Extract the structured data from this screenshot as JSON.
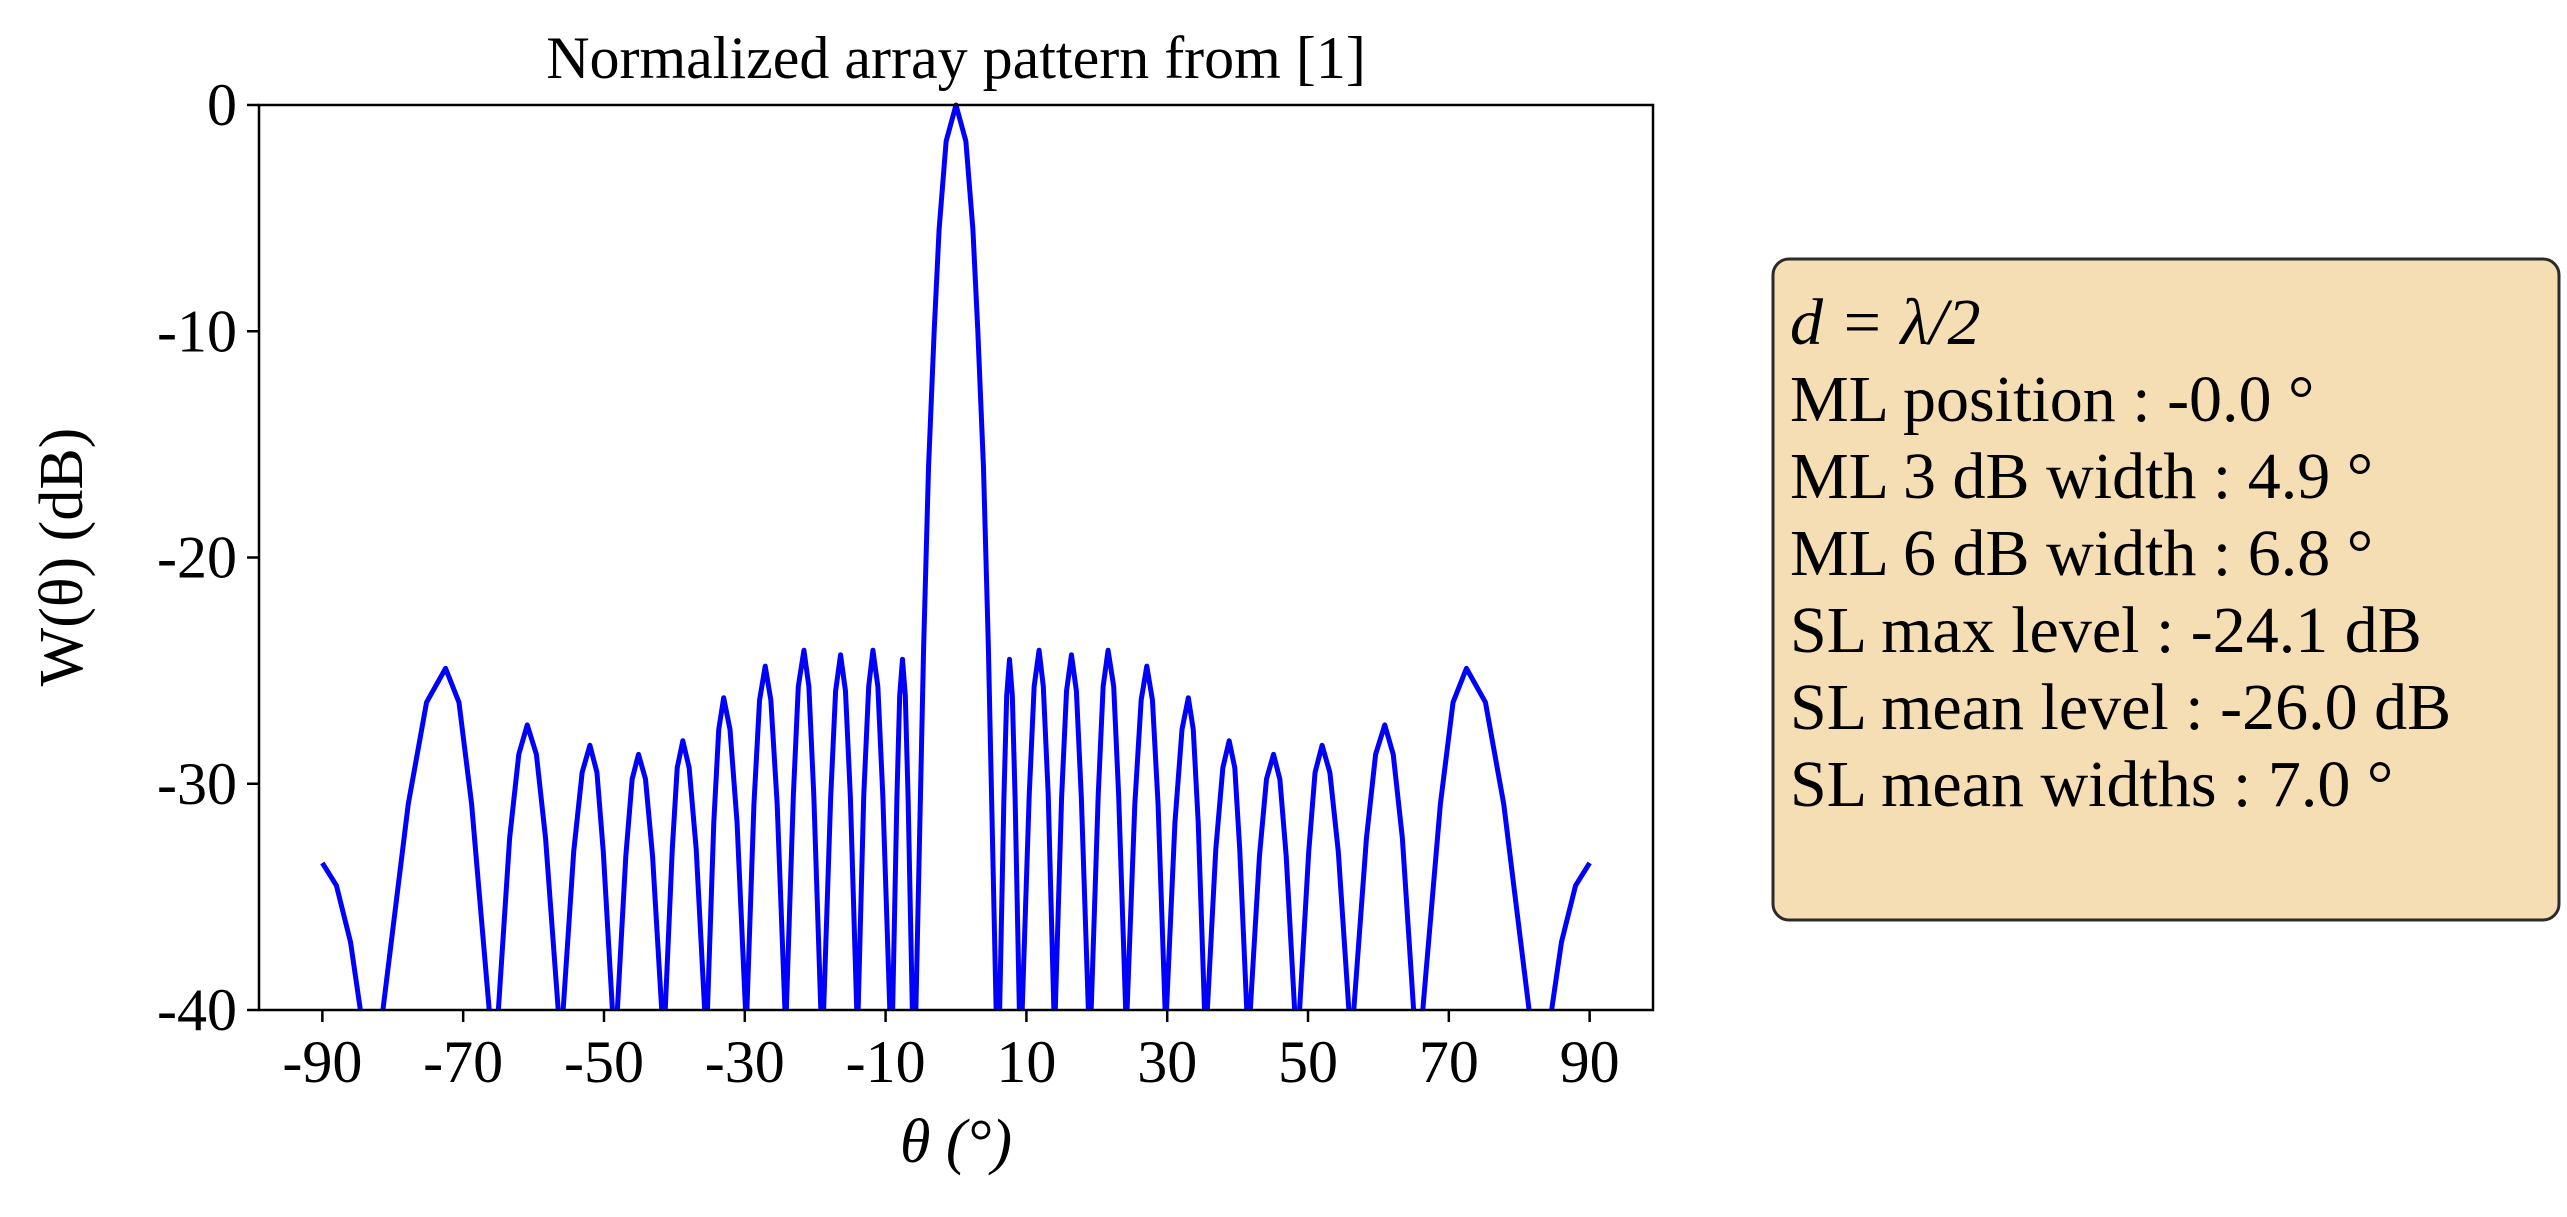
{
  "chart_data": {
    "type": "line",
    "title": "Normalized array pattern from [1]",
    "xlabel": "θ (°)",
    "ylabel": "W(θ) (dB)",
    "color": "#0000ff",
    "xlim": [
      -99,
      99
    ],
    "ylim": [
      -40,
      0
    ],
    "xticks": [
      -90,
      -70,
      -50,
      -30,
      -10,
      10,
      30,
      50,
      70,
      90
    ],
    "yticks": [
      -40,
      -30,
      -20,
      -10,
      0
    ],
    "grid": false,
    "x": [
      -90,
      -88,
      -86,
      -84.6,
      -83,
      -81.4,
      -77.8,
      -75.2,
      -72.5,
      -70.6,
      -68.8,
      -66.3,
      -65.6,
      -65.0,
      -63.4,
      -62.1,
      -60.9,
      -59.6,
      -58.3,
      -56.5,
      -56.1,
      -55.8,
      -54.3,
      -53.1,
      -52.0,
      -51.0,
      -50.1,
      -48.8,
      -48.4,
      -48.1,
      -46.9,
      -46.0,
      -45.1,
      -44.1,
      -43.1,
      -41.8,
      -41.5,
      -41.3,
      -40.3,
      -39.6,
      -38.8,
      -37.9,
      -36.9,
      -35.7,
      -35.5,
      -35.3,
      -34.4,
      -33.7,
      -33.0,
      -32.1,
      -31.1,
      -29.9,
      -29.8,
      -29.7,
      -28.7,
      -27.9,
      -27.1,
      -26.3,
      -25.4,
      -24.3,
      -24.2,
      -24.1,
      -23.1,
      -22.4,
      -21.6,
      -20.9,
      -20.2,
      -19.2,
      -19.0,
      -18.8,
      -17.8,
      -17.1,
      -16.4,
      -15.7,
      -15.0,
      -14.1,
      -14.0,
      -13.9,
      -13.1,
      -12.4,
      -11.8,
      -11.1,
      -10.4,
      -9.4,
      -9.2,
      -9.0,
      -8.4,
      -8.0,
      -7.6,
      -7.2,
      -6.8,
      -6.2,
      -6.0,
      -5.7,
      -4.6,
      -3.9,
      -3.1,
      -2.4,
      -1.4,
      0,
      1.4,
      2.4,
      3.1,
      3.9,
      4.6,
      5.7,
      6.0,
      6.2,
      6.8,
      7.2,
      7.6,
      8.0,
      8.4,
      9.0,
      9.2,
      9.4,
      10.4,
      11.1,
      11.8,
      12.4,
      13.1,
      13.9,
      14.0,
      14.1,
      15.0,
      15.7,
      16.4,
      17.1,
      17.8,
      18.8,
      19.0,
      19.2,
      20.2,
      20.9,
      21.6,
      22.4,
      23.1,
      24.1,
      24.2,
      24.3,
      25.4,
      26.3,
      27.1,
      27.9,
      28.7,
      29.7,
      29.8,
      29.9,
      31.1,
      32.1,
      33.0,
      33.7,
      34.4,
      35.3,
      35.5,
      35.7,
      36.9,
      37.9,
      38.8,
      39.6,
      40.3,
      41.3,
      41.5,
      41.8,
      43.1,
      44.1,
      45.1,
      46.0,
      46.9,
      48.1,
      48.4,
      48.8,
      50.1,
      51.0,
      52.0,
      53.1,
      54.3,
      55.8,
      56.1,
      56.5,
      58.3,
      59.6,
      60.9,
      62.1,
      63.4,
      65.0,
      65.6,
      66.3,
      68.8,
      70.6,
      72.5,
      75.2,
      77.8,
      81.4,
      83,
      84.6,
      86,
      88,
      90
    ],
    "values": [
      -33.5,
      -34.5,
      -37,
      -40,
      null,
      -40,
      -30.9,
      -26.4,
      -24.9,
      -26.4,
      -30.9,
      -40,
      null,
      -40,
      -32.4,
      -28.7,
      -27.4,
      -28.7,
      -32.4,
      -40,
      null,
      -40,
      -33.0,
      -29.5,
      -28.3,
      -29.5,
      -33.0,
      -40,
      null,
      -40,
      -33.2,
      -29.8,
      -28.7,
      -29.8,
      -33.2,
      -40,
      null,
      -40,
      -32.9,
      -29.3,
      -28.1,
      -29.3,
      -32.9,
      -40,
      null,
      -40,
      -31.7,
      -27.6,
      -26.2,
      -27.6,
      -31.7,
      -40,
      null,
      -40,
      -30.9,
      -26.3,
      -24.8,
      -26.3,
      -30.9,
      -40,
      null,
      -40,
      -30.5,
      -25.7,
      -24.1,
      -25.7,
      -30.5,
      -40,
      null,
      -40,
      -30.6,
      -25.9,
      -24.3,
      -25.9,
      -30.6,
      -40,
      null,
      -40,
      -30.5,
      -25.7,
      -24.1,
      -25.7,
      -30.5,
      -40,
      null,
      -40,
      -30.7,
      -26.1,
      -24.5,
      -26.1,
      -30.7,
      -40,
      null,
      -40,
      -24,
      -16,
      -10,
      -5.5,
      -1.6,
      0,
      -1.6,
      -5.5,
      -10,
      -16,
      -24,
      -40,
      null,
      -40,
      -30.7,
      -26.1,
      -24.5,
      -26.1,
      -30.7,
      -40,
      null,
      -40,
      -30.5,
      -25.7,
      -24.1,
      -25.7,
      -30.5,
      -40,
      null,
      -40,
      -30.6,
      -25.9,
      -24.3,
      -25.9,
      -30.6,
      -40,
      null,
      -40,
      -30.5,
      -25.7,
      -24.1,
      -25.7,
      -30.5,
      -40,
      null,
      -40,
      -30.9,
      -26.3,
      -24.8,
      -26.3,
      -30.9,
      -40,
      null,
      -40,
      -31.7,
      -27.6,
      -26.2,
      -27.6,
      -31.7,
      -40,
      null,
      -40,
      -32.9,
      -29.3,
      -28.1,
      -29.3,
      -32.9,
      -40,
      null,
      -40,
      -33.2,
      -29.8,
      -28.7,
      -29.8,
      -33.2,
      -40,
      null,
      -40,
      -33.0,
      -29.5,
      -28.3,
      -29.5,
      -33.0,
      -40,
      null,
      -40,
      -32.4,
      -28.7,
      -27.4,
      -28.7,
      -32.4,
      -40,
      null,
      -40,
      -30.9,
      -26.4,
      -24.9,
      -26.4,
      -30.9,
      -40,
      null,
      -40,
      -37,
      -34.5,
      -33.5
    ],
    "annotation_box": {
      "facecolor": "#f5deb3",
      "lines": [
        "d = λ/2",
        "ML position : -0.0 °",
        "ML 3 dB width : 4.9 °",
        "ML 6 dB width : 6.8 °",
        "SL max level : -24.1 dB",
        "SL mean level : -26.0 dB",
        "SL mean widths : 7.0 °"
      ]
    }
  }
}
